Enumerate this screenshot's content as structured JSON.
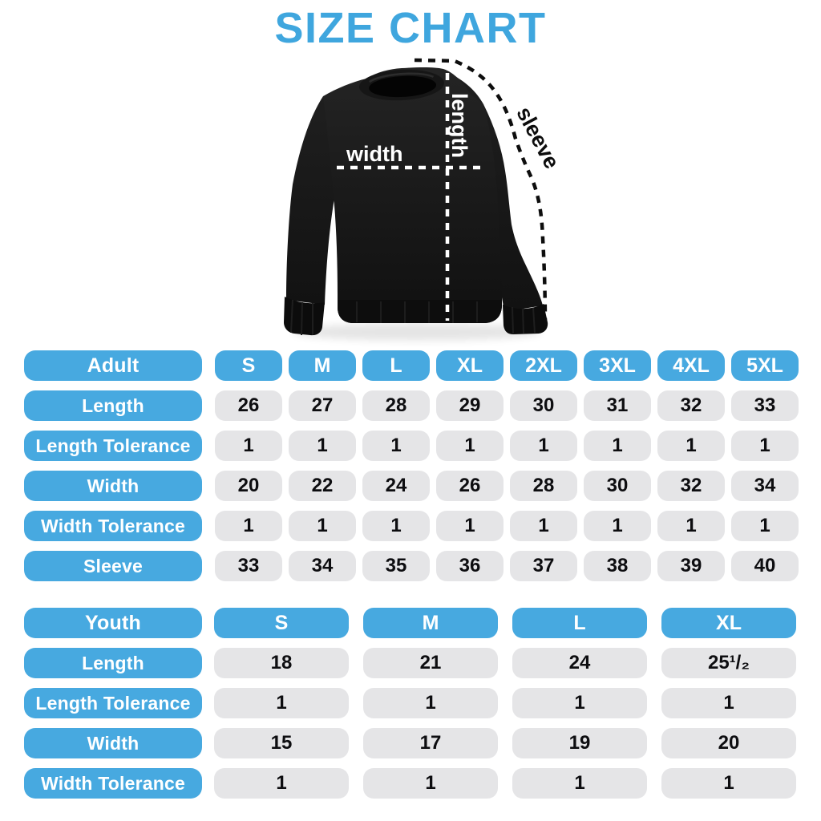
{
  "title": "SIZE CHART",
  "colors": {
    "accent_blue": "#47A9E0",
    "title_blue": "#3FA6DE",
    "pill_gray": "#E5E5E7",
    "value_text": "#0d0d10",
    "shirt_black": "#171717"
  },
  "diagram": {
    "garment": "crewneck-sweatshirt",
    "labels": {
      "width": "width",
      "length": "length",
      "sleeve": "sleeve"
    }
  },
  "chart_data": [
    {
      "type": "table",
      "header_label": "Adult",
      "columns": [
        "S",
        "M",
        "L",
        "XL",
        "2XL",
        "3XL",
        "4XL",
        "5XL"
      ],
      "rows": [
        {
          "label": "Length",
          "values": [
            "26",
            "27",
            "28",
            "29",
            "30",
            "31",
            "32",
            "33"
          ]
        },
        {
          "label": "Length Tolerance",
          "values": [
            "1",
            "1",
            "1",
            "1",
            "1",
            "1",
            "1",
            "1"
          ]
        },
        {
          "label": "Width",
          "values": [
            "20",
            "22",
            "24",
            "26",
            "28",
            "30",
            "32",
            "34"
          ]
        },
        {
          "label": "Width Tolerance",
          "values": [
            "1",
            "1",
            "1",
            "1",
            "1",
            "1",
            "1",
            "1"
          ]
        },
        {
          "label": "Sleeve",
          "values": [
            "33",
            "34",
            "35",
            "36",
            "37",
            "38",
            "39",
            "40"
          ]
        }
      ]
    },
    {
      "type": "table",
      "header_label": "Youth",
      "columns": [
        "S",
        "M",
        "L",
        "XL"
      ],
      "rows": [
        {
          "label": "Length",
          "values": [
            "18",
            "21",
            "24",
            "25¹/₂"
          ]
        },
        {
          "label": "Length Tolerance",
          "values": [
            "1",
            "1",
            "1",
            "1"
          ]
        },
        {
          "label": "Width",
          "values": [
            "15",
            "17",
            "19",
            "20"
          ]
        },
        {
          "label": "Width Tolerance",
          "values": [
            "1",
            "1",
            "1",
            "1"
          ]
        }
      ]
    }
  ]
}
